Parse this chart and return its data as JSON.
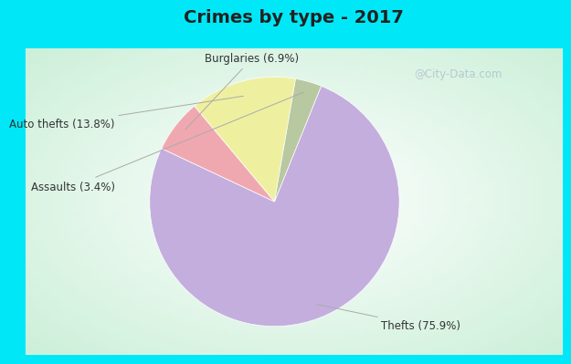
{
  "title": "Crimes by type - 2017",
  "slices": [
    {
      "label": "Thefts (75.9%)",
      "value": 75.9,
      "color": "#c4aede"
    },
    {
      "label": "Burglaries (6.9%)",
      "value": 6.9,
      "color": "#f0a8b0"
    },
    {
      "label": "Auto thefts (13.8%)",
      "value": 13.8,
      "color": "#eef0a0"
    },
    {
      "label": "Assaults (3.4%)",
      "value": 3.4,
      "color": "#b8c8a0"
    }
  ],
  "bg_cyan": "#00e8f8",
  "bg_mint_outer": "#c0dcc8",
  "bg_mint_inner": "#e8f4f0",
  "title_color": "#333333",
  "title_fontsize": 14,
  "label_fontsize": 8.5,
  "watermark": "@City-Data.com",
  "watermark_color": "#aabbcc",
  "startangle": 68
}
